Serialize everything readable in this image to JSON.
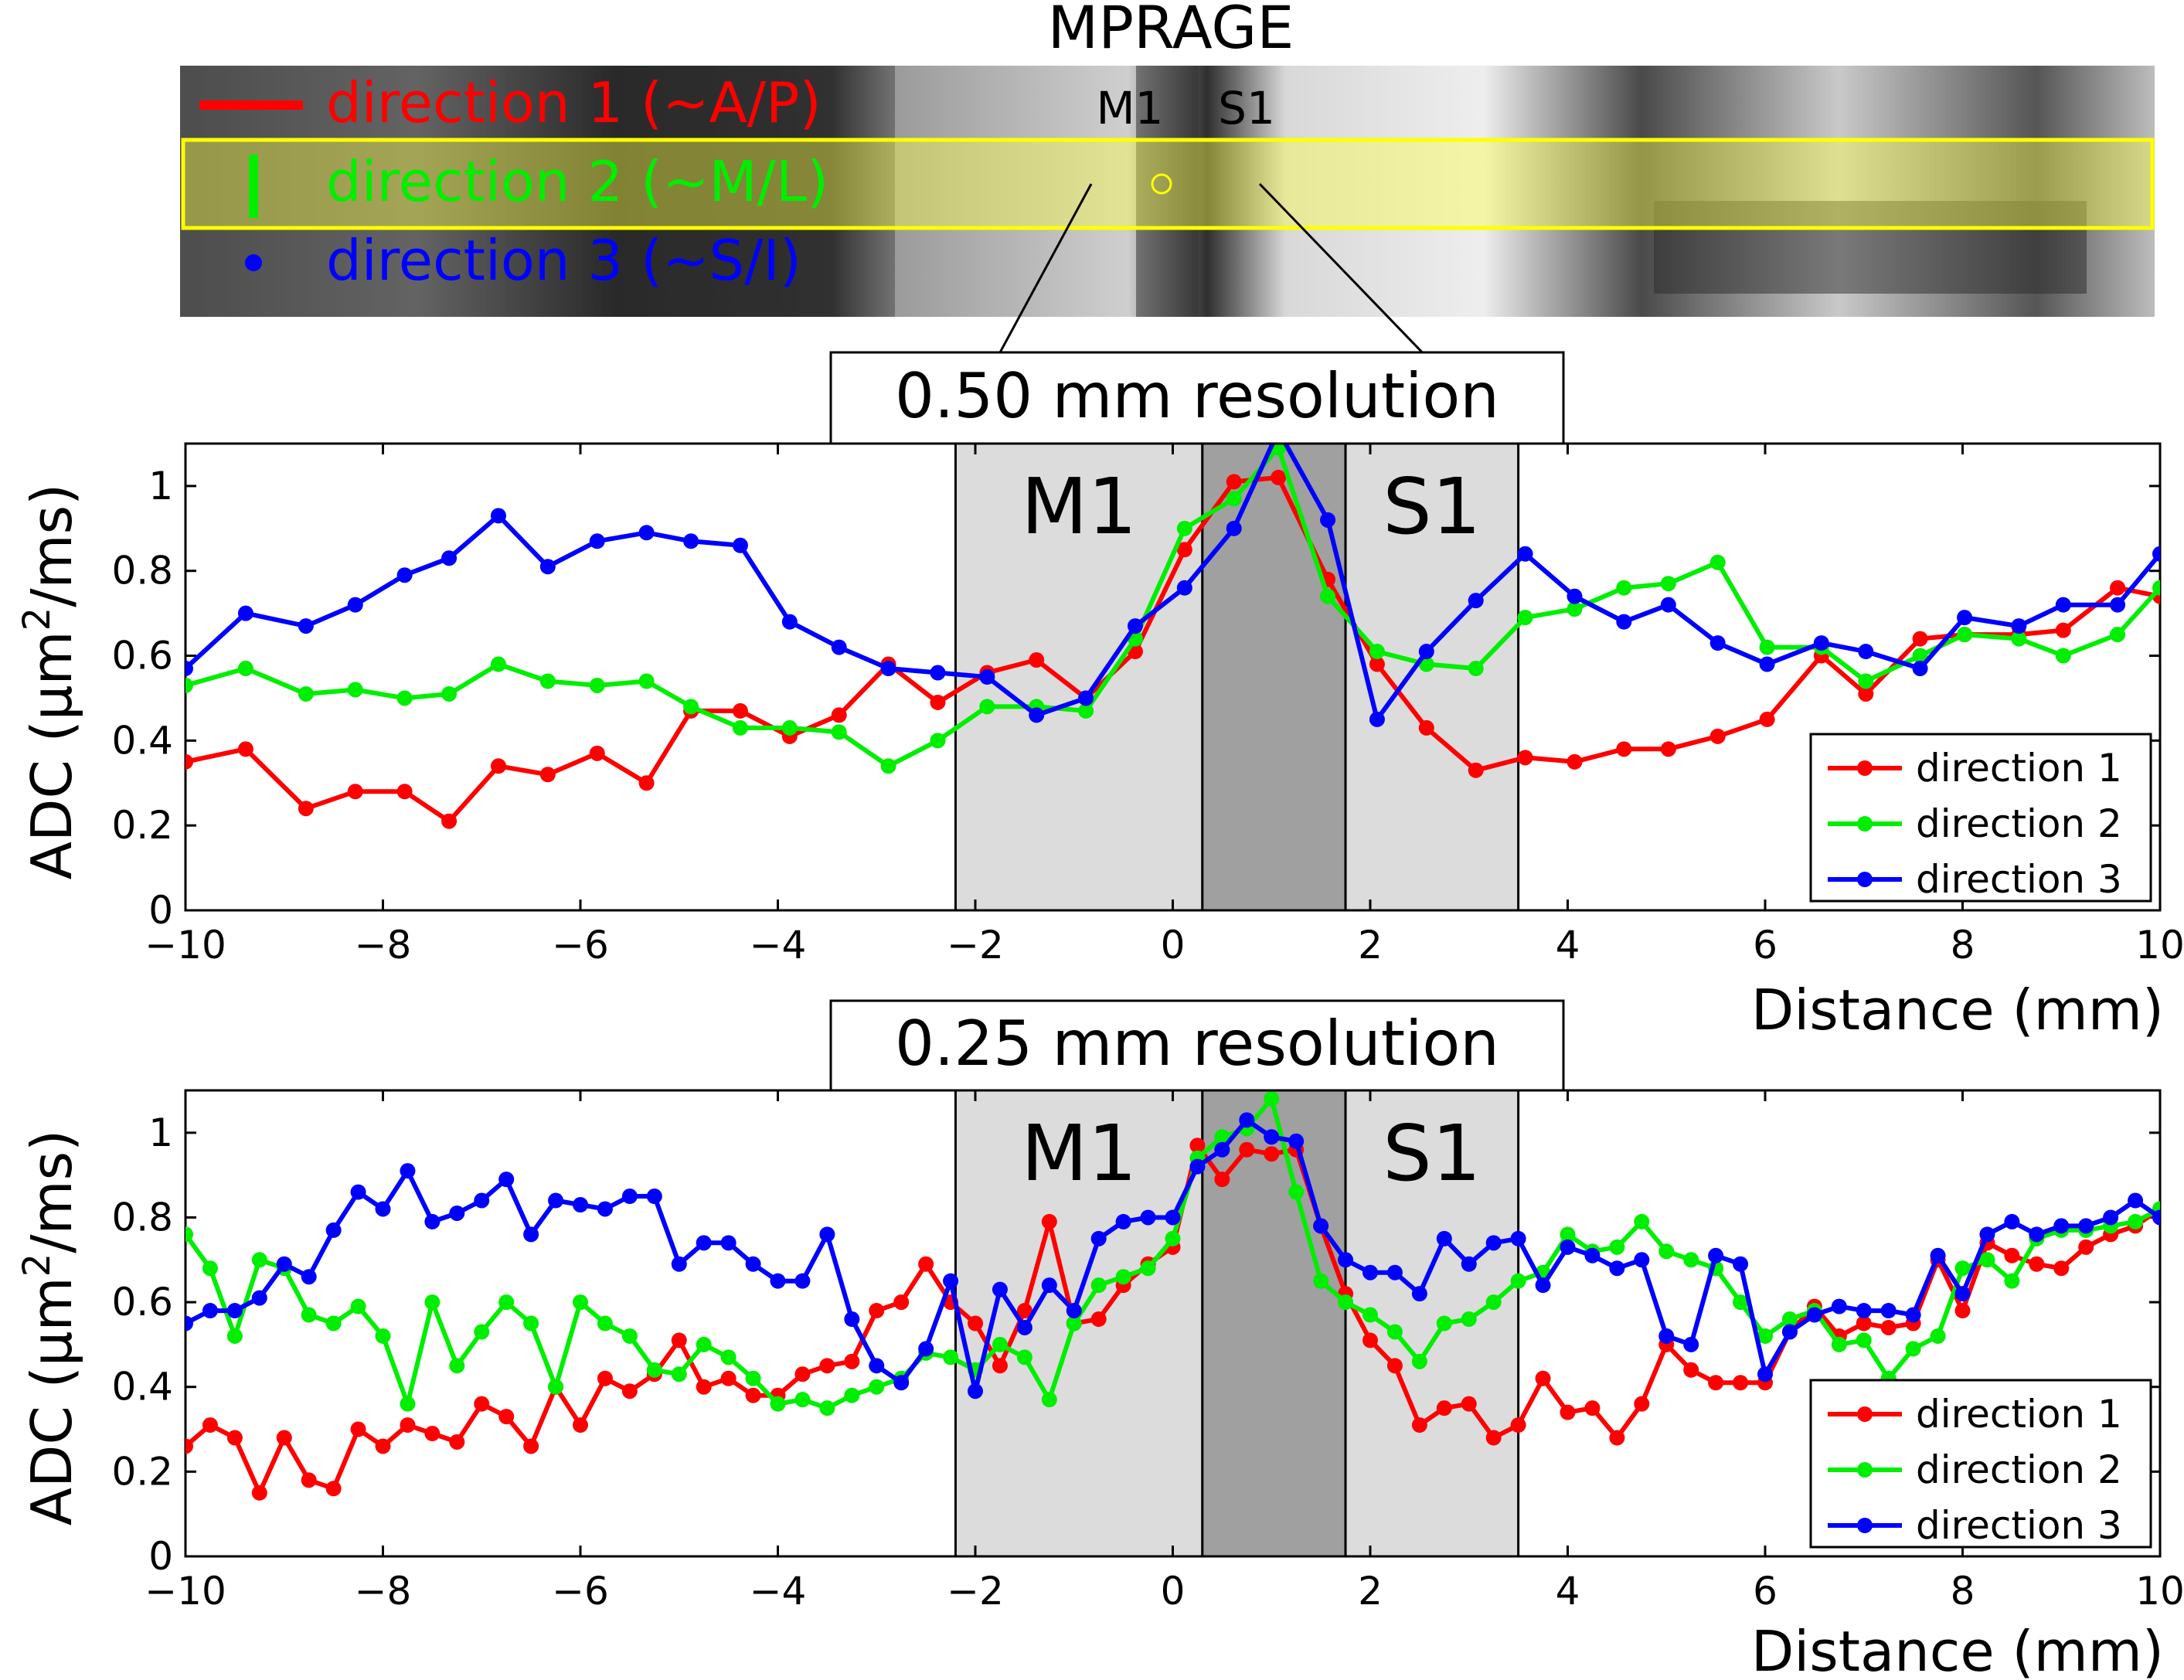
{
  "figure": {
    "image_title": "MPRAGE",
    "image_labels": {
      "m1": "M1",
      "s1": "S1"
    },
    "image_legend": [
      {
        "label": "direction 1 (~A/P)",
        "color": "#ff0000",
        "marker": "line"
      },
      {
        "label": "direction 2 (~M/L)",
        "color": "#00ff00",
        "marker": "vbar"
      },
      {
        "label": "direction 3 (~S/I)",
        "color": "#0000ff",
        "marker": "dot"
      }
    ]
  },
  "chart_data": [
    {
      "type": "line",
      "title": "0.50 mm resolution",
      "xlabel": "Distance (mm)",
      "ylabel_prefix": "ADC (µm",
      "ylabel_sup": "2",
      "ylabel_suffix": "/ms)",
      "xlim": [
        -10,
        10
      ],
      "ylim": [
        0,
        1.1
      ],
      "xticks": [
        -10,
        -8,
        -6,
        -4,
        -2,
        0,
        2,
        4,
        6,
        8,
        10
      ],
      "xtick_labels": [
        "−10",
        "−8",
        "−6",
        "−4",
        "−2",
        "0",
        "2",
        "4",
        "6",
        "8",
        "10"
      ],
      "yticks": [
        0,
        0.2,
        0.4,
        0.6,
        0.8,
        1
      ],
      "ytick_labels": [
        "0",
        "0.2",
        "0.4",
        "0.6",
        "0.8",
        "1"
      ],
      "regions": [
        {
          "x0": -2.2,
          "x1": 0.3,
          "label": "M1",
          "shade": "light"
        },
        {
          "x0": 0.3,
          "x1": 1.75,
          "label": "",
          "shade": "dark"
        },
        {
          "x0": 1.75,
          "x1": 3.5,
          "label": "S1",
          "shade": "light"
        }
      ],
      "series": [
        {
          "name": "direction 1",
          "color": "#ff0000",
          "x": [
            -10,
            -9.39,
            -8.78,
            -8.28,
            -7.78,
            -7.33,
            -6.83,
            -6.33,
            -5.83,
            -5.33,
            -4.88,
            -4.38,
            -3.88,
            -3.38,
            -2.88,
            -2.38,
            -1.88,
            -1.38,
            -0.88,
            -0.38,
            0.12,
            0.62,
            1.07,
            1.57,
            2.07,
            2.57,
            3.07,
            3.57,
            4.07,
            4.57,
            5.02,
            5.52,
            6.02,
            6.57,
            7.02,
            7.57,
            8.02,
            8.57,
            9.02,
            9.57,
            10
          ],
          "values": [
            0.35,
            0.38,
            0.24,
            0.28,
            0.28,
            0.21,
            0.34,
            0.32,
            0.37,
            0.3,
            0.47,
            0.47,
            0.41,
            0.46,
            0.58,
            0.49,
            0.56,
            0.59,
            0.5,
            0.61,
            0.85,
            1.01,
            1.02,
            0.78,
            0.58,
            0.43,
            0.33,
            0.36,
            0.35,
            0.38,
            0.38,
            0.41,
            0.45,
            0.6,
            0.51,
            0.64,
            0.65,
            0.65,
            0.66,
            0.76,
            0.74
          ]
        },
        {
          "name": "direction 2",
          "color": "#00ee00",
          "x": [
            -10,
            -9.39,
            -8.78,
            -8.28,
            -7.78,
            -7.33,
            -6.83,
            -6.33,
            -5.83,
            -5.33,
            -4.88,
            -4.38,
            -3.88,
            -3.38,
            -2.88,
            -2.38,
            -1.88,
            -1.38,
            -0.88,
            -0.38,
            0.12,
            0.62,
            1.07,
            1.57,
            2.07,
            2.57,
            3.07,
            3.57,
            4.07,
            4.57,
            5.02,
            5.52,
            6.02,
            6.57,
            7.02,
            7.57,
            8.02,
            8.57,
            9.02,
            9.57,
            10
          ],
          "values": [
            0.53,
            0.57,
            0.51,
            0.52,
            0.5,
            0.51,
            0.58,
            0.54,
            0.53,
            0.54,
            0.48,
            0.43,
            0.43,
            0.42,
            0.34,
            0.4,
            0.48,
            0.48,
            0.47,
            0.64,
            0.9,
            0.97,
            1.09,
            0.74,
            0.61,
            0.58,
            0.57,
            0.69,
            0.71,
            0.76,
            0.77,
            0.82,
            0.62,
            0.62,
            0.54,
            0.6,
            0.65,
            0.64,
            0.6,
            0.65,
            0.76
          ]
        },
        {
          "name": "direction 3",
          "color": "#0000ff",
          "x": [
            -10,
            -9.39,
            -8.78,
            -8.28,
            -7.78,
            -7.33,
            -6.83,
            -6.33,
            -5.83,
            -5.33,
            -4.88,
            -4.38,
            -3.88,
            -3.38,
            -2.88,
            -2.38,
            -1.88,
            -1.38,
            -0.88,
            -0.38,
            0.12,
            0.62,
            1.07,
            1.57,
            2.07,
            2.57,
            3.07,
            3.57,
            4.07,
            4.57,
            5.02,
            5.52,
            6.02,
            6.57,
            7.02,
            7.57,
            8.02,
            8.57,
            9.02,
            9.57,
            10
          ],
          "values": [
            0.57,
            0.7,
            0.67,
            0.72,
            0.79,
            0.83,
            0.93,
            0.81,
            0.87,
            0.89,
            0.87,
            0.86,
            0.68,
            0.62,
            0.57,
            0.56,
            0.55,
            0.46,
            0.5,
            0.67,
            0.76,
            0.9,
            1.13,
            0.92,
            0.45,
            0.61,
            0.73,
            0.84,
            0.74,
            0.68,
            0.72,
            0.63,
            0.58,
            0.63,
            0.61,
            0.57,
            0.69,
            0.67,
            0.72,
            0.72,
            0.84
          ]
        }
      ],
      "legend": [
        "direction 1",
        "direction 2",
        "direction 3"
      ],
      "legend_position": "bottom-right"
    },
    {
      "type": "line",
      "title": "0.25 mm resolution",
      "xlabel": "Distance (mm)",
      "ylabel_prefix": "ADC (µm",
      "ylabel_sup": "2",
      "ylabel_suffix": "/ms)",
      "xlim": [
        -10,
        10
      ],
      "ylim": [
        0,
        1.1
      ],
      "xticks": [
        -10,
        -8,
        -6,
        -4,
        -2,
        0,
        2,
        4,
        6,
        8,
        10
      ],
      "xtick_labels": [
        "−10",
        "−8",
        "−6",
        "−4",
        "−2",
        "0",
        "2",
        "4",
        "6",
        "8",
        "10"
      ],
      "yticks": [
        0,
        0.2,
        0.4,
        0.6,
        0.8,
        1
      ],
      "ytick_labels": [
        "0",
        "0.2",
        "0.4",
        "0.6",
        "0.8",
        "1"
      ],
      "regions": [
        {
          "x0": -2.2,
          "x1": 0.3,
          "label": "M1",
          "shade": "light"
        },
        {
          "x0": 0.3,
          "x1": 1.75,
          "label": "",
          "shade": "dark"
        },
        {
          "x0": 1.75,
          "x1": 3.5,
          "label": "S1",
          "shade": "light"
        }
      ],
      "series": [
        {
          "name": "direction 1",
          "color": "#ff0000",
          "x": [
            -10,
            -9.75,
            -9.5,
            -9.25,
            -9,
            -8.75,
            -8.5,
            -8.25,
            -8,
            -7.75,
            -7.5,
            -7.25,
            -7,
            -6.75,
            -6.5,
            -6.25,
            -6,
            -5.75,
            -5.5,
            -5.25,
            -5,
            -4.75,
            -4.5,
            -4.25,
            -4,
            -3.75,
            -3.5,
            -3.25,
            -3,
            -2.75,
            -2.5,
            -2.25,
            -2,
            -1.75,
            -1.5,
            -1.25,
            -1,
            -0.75,
            -0.5,
            -0.25,
            0,
            0.25,
            0.5,
            0.75,
            1,
            1.25,
            1.5,
            1.75,
            2,
            2.25,
            2.5,
            2.75,
            3,
            3.25,
            3.5,
            3.75,
            4,
            4.25,
            4.5,
            4.75,
            5,
            5.25,
            5.5,
            5.75,
            6,
            6.25,
            6.5,
            6.75,
            7,
            7.25,
            7.5,
            7.75,
            8,
            8.25,
            8.5,
            8.75,
            9,
            9.25,
            9.5,
            9.75,
            10
          ],
          "values": [
            0.26,
            0.31,
            0.28,
            0.15,
            0.28,
            0.18,
            0.16,
            0.3,
            0.26,
            0.31,
            0.29,
            0.27,
            0.36,
            0.33,
            0.26,
            0.4,
            0.31,
            0.42,
            0.39,
            0.43,
            0.51,
            0.4,
            0.42,
            0.38,
            0.38,
            0.43,
            0.45,
            0.46,
            0.58,
            0.6,
            0.69,
            0.6,
            0.55,
            0.45,
            0.58,
            0.79,
            0.55,
            0.56,
            0.64,
            0.69,
            0.73,
            0.97,
            0.89,
            0.96,
            0.95,
            0.96,
            0.78,
            0.62,
            0.51,
            0.45,
            0.31,
            0.35,
            0.36,
            0.28,
            0.31,
            0.42,
            0.34,
            0.35,
            0.28,
            0.36,
            0.5,
            0.44,
            0.41,
            0.41,
            0.41,
            0.53,
            0.59,
            0.52,
            0.55,
            0.54,
            0.55,
            0.7,
            0.58,
            0.74,
            0.71,
            0.69,
            0.68,
            0.73,
            0.76,
            0.78,
            0.82
          ]
        },
        {
          "name": "direction 2",
          "color": "#00ee00",
          "x": [
            -10,
            -9.75,
            -9.5,
            -9.25,
            -9,
            -8.75,
            -8.5,
            -8.25,
            -8,
            -7.75,
            -7.5,
            -7.25,
            -7,
            -6.75,
            -6.5,
            -6.25,
            -6,
            -5.75,
            -5.5,
            -5.25,
            -5,
            -4.75,
            -4.5,
            -4.25,
            -4,
            -3.75,
            -3.5,
            -3.25,
            -3,
            -2.75,
            -2.5,
            -2.25,
            -2,
            -1.75,
            -1.5,
            -1.25,
            -1,
            -0.75,
            -0.5,
            -0.25,
            0,
            0.25,
            0.5,
            0.75,
            1,
            1.25,
            1.5,
            1.75,
            2,
            2.25,
            2.5,
            2.75,
            3,
            3.25,
            3.5,
            3.75,
            4,
            4.25,
            4.5,
            4.75,
            5,
            5.25,
            5.5,
            5.75,
            6,
            6.25,
            6.5,
            6.75,
            7,
            7.25,
            7.5,
            7.75,
            8,
            8.25,
            8.5,
            8.75,
            9,
            9.25,
            9.5,
            9.75,
            10
          ],
          "values": [
            0.76,
            0.68,
            0.52,
            0.7,
            0.68,
            0.57,
            0.55,
            0.59,
            0.52,
            0.36,
            0.6,
            0.45,
            0.53,
            0.6,
            0.55,
            0.4,
            0.6,
            0.55,
            0.52,
            0.44,
            0.43,
            0.5,
            0.47,
            0.42,
            0.36,
            0.37,
            0.35,
            0.38,
            0.4,
            0.42,
            0.48,
            0.47,
            0.44,
            0.5,
            0.47,
            0.37,
            0.55,
            0.64,
            0.66,
            0.68,
            0.75,
            0.94,
            0.99,
            1.01,
            1.08,
            0.86,
            0.65,
            0.6,
            0.57,
            0.53,
            0.46,
            0.55,
            0.56,
            0.6,
            0.65,
            0.67,
            0.76,
            0.72,
            0.73,
            0.79,
            0.72,
            0.7,
            0.68,
            0.6,
            0.52,
            0.56,
            0.58,
            0.5,
            0.51,
            0.42,
            0.49,
            0.52,
            0.68,
            0.7,
            0.65,
            0.75,
            0.77,
            0.77,
            0.78,
            0.79,
            0.82
          ]
        },
        {
          "name": "direction 3",
          "color": "#0000ff",
          "x": [
            -10,
            -9.75,
            -9.5,
            -9.25,
            -9,
            -8.75,
            -8.5,
            -8.25,
            -8,
            -7.75,
            -7.5,
            -7.25,
            -7,
            -6.75,
            -6.5,
            -6.25,
            -6,
            -5.75,
            -5.5,
            -5.25,
            -5,
            -4.75,
            -4.5,
            -4.25,
            -4,
            -3.75,
            -3.5,
            -3.25,
            -3,
            -2.75,
            -2.5,
            -2.25,
            -2,
            -1.75,
            -1.5,
            -1.25,
            -1,
            -0.75,
            -0.5,
            -0.25,
            0,
            0.25,
            0.5,
            0.75,
            1,
            1.25,
            1.5,
            1.75,
            2,
            2.25,
            2.5,
            2.75,
            3,
            3.25,
            3.5,
            3.75,
            4,
            4.25,
            4.5,
            4.75,
            5,
            5.25,
            5.5,
            5.75,
            6,
            6.25,
            6.5,
            6.75,
            7,
            7.25,
            7.5,
            7.75,
            8,
            8.25,
            8.5,
            8.75,
            9,
            9.25,
            9.5,
            9.75,
            10
          ],
          "values": [
            0.55,
            0.58,
            0.58,
            0.61,
            0.69,
            0.66,
            0.77,
            0.86,
            0.82,
            0.91,
            0.79,
            0.81,
            0.84,
            0.89,
            0.76,
            0.84,
            0.83,
            0.82,
            0.85,
            0.85,
            0.69,
            0.74,
            0.74,
            0.69,
            0.65,
            0.65,
            0.76,
            0.56,
            0.45,
            0.41,
            0.49,
            0.65,
            0.39,
            0.63,
            0.54,
            0.64,
            0.58,
            0.75,
            0.79,
            0.8,
            0.8,
            0.92,
            0.96,
            1.03,
            0.99,
            0.98,
            0.78,
            0.7,
            0.67,
            0.67,
            0.62,
            0.75,
            0.69,
            0.74,
            0.75,
            0.64,
            0.73,
            0.71,
            0.68,
            0.7,
            0.52,
            0.5,
            0.71,
            0.69,
            0.43,
            0.53,
            0.57,
            0.59,
            0.58,
            0.58,
            0.57,
            0.71,
            0.62,
            0.76,
            0.79,
            0.76,
            0.78,
            0.78,
            0.8,
            0.84,
            0.8
          ]
        }
      ],
      "legend": [
        "direction 1",
        "direction 2",
        "direction 3"
      ],
      "legend_position": "bottom-right"
    }
  ]
}
